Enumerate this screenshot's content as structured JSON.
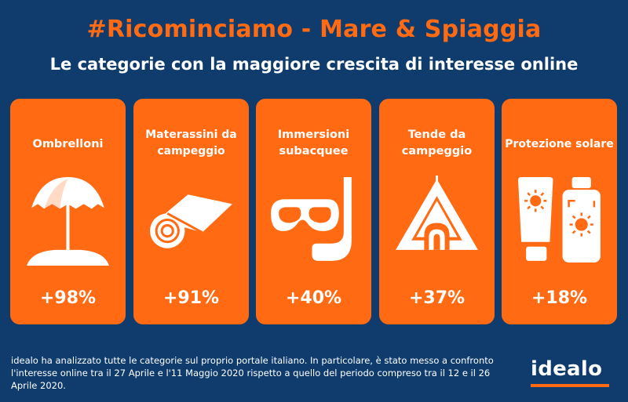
{
  "title": "#Ricominciamo - Mare & Spiaggia",
  "subtitle": "Le categorie con la maggiore crescita di interesse online",
  "categories": [
    {
      "label": "Ombrelloni",
      "value": "+98%",
      "icon": "beach-umbrella-icon"
    },
    {
      "label": "Materassini da campeggio",
      "value": "+91%",
      "icon": "camping-mat-icon"
    },
    {
      "label": "Immersioni subacquee",
      "value": "+40%",
      "icon": "snorkel-mask-icon"
    },
    {
      "label": "Tende da campeggio",
      "value": "+37%",
      "icon": "tent-icon"
    },
    {
      "label": "Protezione solare",
      "value": "+18%",
      "icon": "sunscreen-icon"
    }
  ],
  "footnote": "idealo ha analizzato tutte le categorie sul proprio portale italiano. In particolare, è stato messo a confronto l'interesse online tra il 27 Aprile e l'11 Maggio 2020 rispetto a quello del periodo compreso tra il 12 e il 26 Aprile 2020.",
  "logo": "idealo",
  "colors": {
    "background": "#0f3c6d",
    "accent": "#ff6a13",
    "text": "#ffffff"
  }
}
